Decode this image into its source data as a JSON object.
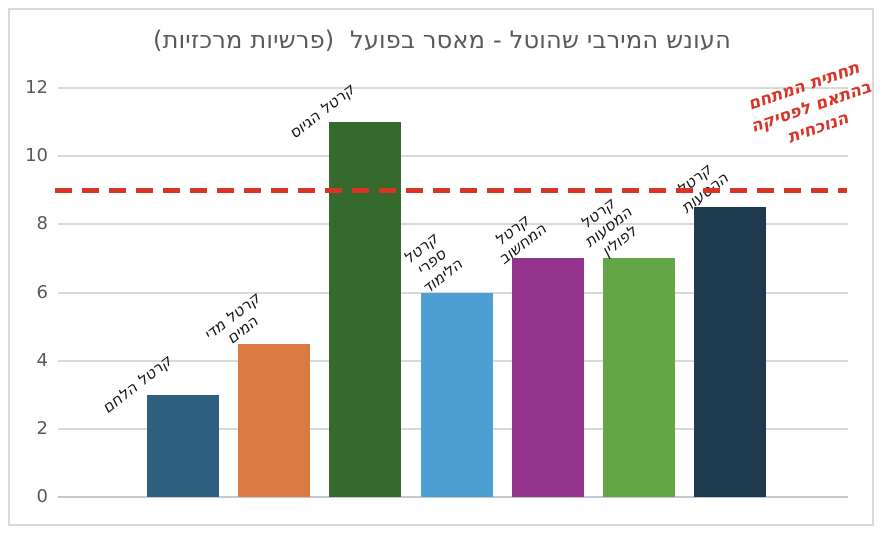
{
  "title": "העונש המירבי שהוטל - מאסר בפועל  (פרשיות מרכזיות)",
  "colors": {
    "title_text": "#595959",
    "axis_text": "#595959",
    "gridline": "#d9d9d9",
    "baseline": "#c4c8cc",
    "frame_border": "#d9d9d9",
    "reference_red": "#d93527",
    "bar_label_text": "#141414",
    "background": "#ffffff"
  },
  "chart_data": {
    "type": "bar",
    "title": "העונש המירבי שהוטל - מאסר בפועל  (פרשיות מרכזיות)",
    "categories": [
      "קרטל הלחם",
      "קרטל מדי המים",
      "קרטל הגיוס",
      "קרטל ספרי הלימוד",
      "קרטל המחשוב",
      "קרטל המסעות לפולין",
      "קרטל ההסעות"
    ],
    "category_lines": [
      [
        "קרטל הלחם"
      ],
      [
        "קרטל מדי",
        "המים"
      ],
      [
        "קרטל הגיוס"
      ],
      [
        "קרטל",
        "ספרי",
        "הלימוד"
      ],
      [
        "קרטל",
        "המחשוב"
      ],
      [
        "קרטל",
        "המסעות",
        "לפולין"
      ],
      [
        "קרטל",
        "ההסעות"
      ]
    ],
    "values": [
      3,
      4.5,
      11,
      6,
      7,
      7,
      8.5
    ],
    "bar_colors": [
      "#2e6180",
      "#d97b42",
      "#36692e",
      "#4d9fd3",
      "#93338c",
      "#62a645",
      "#1d3a4e"
    ],
    "xlabel": "",
    "ylabel": "",
    "ylim": [
      0,
      12
    ],
    "y_ticks": [
      0,
      2,
      4,
      6,
      8,
      10,
      12
    ],
    "grid": true,
    "legend": false,
    "reference_line": {
      "value": 9,
      "style": "dashed",
      "color": "#d93527",
      "label": "תחתית המתחם בהתאם לפסיקה הנוכחית",
      "label_lines": [
        "תחתית המתחם",
        "בהתאם לפסיקה",
        "הנוכחית"
      ]
    }
  }
}
